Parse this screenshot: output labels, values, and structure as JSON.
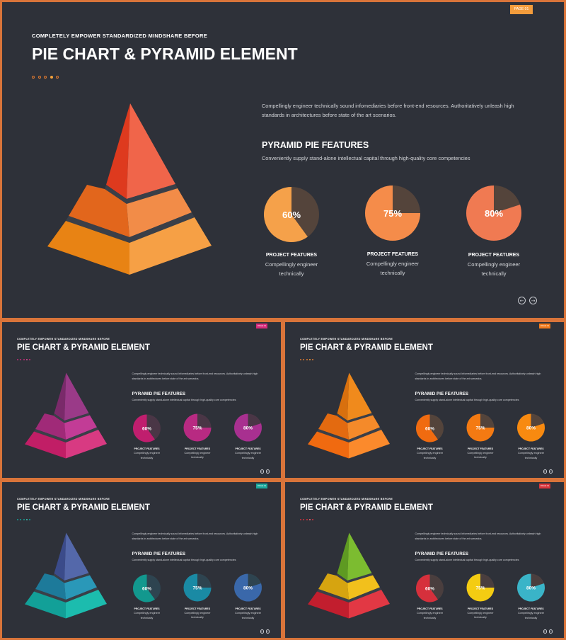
{
  "common": {
    "subtitle": "COMPLETELY EMPOWER STANDARDIZED MINDSHARE BEFORE",
    "title": "PIE CHART & PYRAMID ELEMENT",
    "page_label": "PAGE 01",
    "description": "Compellingly engineer technically sound infomediaries before front-end resources. Authoritatively unleash high standards in architectures before state of the art scenarios.",
    "features_title": "PYRAMID PIE FEATURES",
    "features_subtitle": "Conveniently supply stand-alone intellectual capital through high-quality core competencies",
    "pie_title": "PROJECT FEATURES",
    "pie_desc_line1": "Compellingly engineer",
    "pie_desc_line2": "technically",
    "prev_icon": "arrow-left-circle-icon",
    "next_icon": "arrow-right-circle-icon"
  },
  "pies": [
    {
      "percent_label": "60%",
      "value": 60
    },
    {
      "percent_label": "75%",
      "value": 75
    },
    {
      "percent_label": "80%",
      "value": 80
    }
  ],
  "slides": [
    {
      "name": "slide-orange-red-large",
      "badge_color": "#f39c3c",
      "pyramid": {
        "top_left": "#de3a1e",
        "top_right": "#f0654a",
        "mid_left": "#e2661c",
        "mid_right": "#f28c48",
        "bot_left": "#e88314",
        "bot_right": "#f6a045"
      },
      "pie_colors": [
        "#f5a14a",
        "#f58c4a",
        "#f07a52"
      ],
      "pie_rest": "#54443b",
      "dot_colors": [
        "#e07a30",
        "#e07a30",
        "#e07a30",
        "#f4a23c",
        "#e07a30"
      ]
    },
    {
      "name": "slide-magenta",
      "badge_color": "#d62a7a",
      "pyramid": {
        "top_left": "#7a2a6a",
        "top_right": "#9a3a88",
        "mid_left": "#a02a78",
        "mid_right": "#c23c96",
        "bot_left": "#c11e66",
        "bot_right": "#d83a82"
      },
      "pie_colors": [
        "#c01e6e",
        "#b82a82",
        "#a83090"
      ],
      "pie_rest": "#4a3646",
      "dot_colors": [
        "#c92c7a",
        "#c92c7a",
        "#c92c7a",
        "#e04a96",
        "#c92c7a"
      ]
    },
    {
      "name": "slide-orange",
      "badge_color": "#f07a1c",
      "pyramid": {
        "top_left": "#d8700e",
        "top_right": "#f08a1c",
        "mid_left": "#e36a10",
        "mid_right": "#f48a2a",
        "bot_left": "#f06a10",
        "bot_right": "#fb8a2c"
      },
      "pie_colors": [
        "#f06b10",
        "#f47a12",
        "#f88a10"
      ],
      "pie_rest": "#54443b",
      "dot_colors": [
        "#e07a30",
        "#e07a30",
        "#e07a30",
        "#f4a23c",
        "#e07a30"
      ]
    },
    {
      "name": "slide-teal-blue",
      "badge_color": "#1aa99c",
      "pyramid": {
        "top_left": "#3b4b8a",
        "top_right": "#5468aa",
        "mid_left": "#1d7a9a",
        "mid_right": "#2a98b8",
        "bot_left": "#12a098",
        "bot_right": "#1cbcae"
      },
      "pie_colors": [
        "#12988e",
        "#1a8aa4",
        "#3a68aa"
      ],
      "pie_rest": "#2e4450",
      "dot_colors": [
        "#16a399",
        "#16a399",
        "#16a399",
        "#3cc6b8",
        "#16a399"
      ]
    },
    {
      "name": "slide-multicolor",
      "badge_color": "#d8353c",
      "pyramid": {
        "top_left": "#5e9a22",
        "top_right": "#7cbc30",
        "mid_left": "#d6a410",
        "mid_right": "#f2c01c",
        "bot_left": "#c21e2e",
        "bot_right": "#e23844"
      },
      "pie_colors": [
        "#d6303c",
        "#f4cc12",
        "#3ab4c8"
      ],
      "pie_rest": "#4a3e3e",
      "dot_colors": [
        "#d6303c",
        "#d6303c",
        "#d6303c",
        "#f07078",
        "#d6303c"
      ]
    }
  ]
}
